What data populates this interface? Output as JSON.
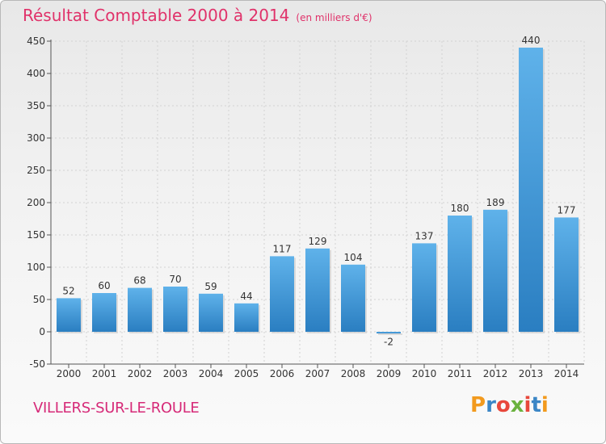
{
  "header": {
    "title": "Résultat Comptable 2000 à 2014",
    "subtitle": "(en milliers d'€)"
  },
  "footer": {
    "place": "VILLERS-SUR-LE-ROULE",
    "logo_text": "Proxiti"
  },
  "colors": {
    "title": "#e0326a",
    "bar_light": "#5aaee6",
    "bar_dark": "#2b7fc2",
    "place": "#d62a78"
  },
  "chart_data": {
    "type": "bar",
    "title": "Résultat Comptable 2000 à 2014",
    "subtitle": "(en milliers d'€)",
    "categories": [
      "2000",
      "2001",
      "2002",
      "2003",
      "2004",
      "2005",
      "2006",
      "2007",
      "2008",
      "2009",
      "2010",
      "2011",
      "2012",
      "2013",
      "2014"
    ],
    "values": [
      52,
      60,
      68,
      70,
      59,
      44,
      117,
      129,
      104,
      -2,
      137,
      180,
      189,
      440,
      177
    ],
    "ylim": [
      -50,
      450
    ],
    "yticks": [
      -50,
      0,
      50,
      100,
      150,
      200,
      250,
      300,
      350,
      400,
      450
    ],
    "grid": true,
    "data_labels": true
  }
}
